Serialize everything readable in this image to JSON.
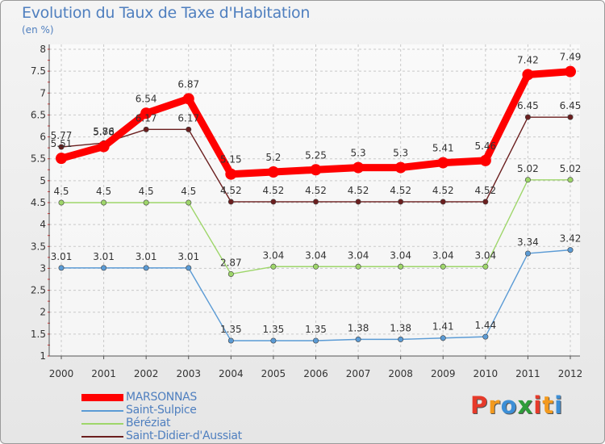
{
  "title": "Evolution du Taux de Taxe d'Habitation",
  "subtitle": "(en %)",
  "brand": {
    "text": "Proxiti",
    "letters": [
      "P",
      "r",
      "o",
      "x",
      "i",
      "t",
      "i"
    ],
    "colors": [
      "#e63a2a",
      "#f39a1e",
      "#3d8fd6",
      "#2e9d3a",
      "#e63a2a",
      "#f39a1e",
      "#3d8fd6"
    ]
  },
  "chart_data": {
    "type": "line",
    "x": [
      "2000",
      "2001",
      "2002",
      "2003",
      "2004",
      "2005",
      "2006",
      "2007",
      "2008",
      "2009",
      "2010",
      "2011",
      "2012"
    ],
    "ylim": [
      1,
      8
    ],
    "yticks": [
      "1",
      "1.5",
      "2",
      "2.5",
      "3",
      "3.5",
      "4",
      "4.5",
      "5",
      "5.5",
      "6",
      "6.5",
      "7",
      "7.5",
      "8"
    ],
    "grid": true,
    "legend_position": "bottom-left",
    "series": [
      {
        "name": "Saint-Didier-d'Aussiat",
        "color": "#6b1f1f",
        "values": [
          5.77,
          5.86,
          6.17,
          6.17,
          4.52,
          4.52,
          4.52,
          4.52,
          4.52,
          4.52,
          4.52,
          6.45,
          6.45
        ],
        "labels": [
          "5.77",
          "5.86",
          "6.17",
          "6.17",
          "4.52",
          "4.52",
          "4.52",
          "4.52",
          "4.52",
          "4.52",
          "4.52",
          "6.45",
          "6.45"
        ]
      },
      {
        "name": "Béréziat",
        "color": "#9ed66a",
        "values": [
          4.5,
          4.5,
          4.5,
          4.5,
          2.87,
          3.04,
          3.04,
          3.04,
          3.04,
          3.04,
          3.04,
          5.02,
          5.02
        ],
        "labels": [
          "4.5",
          "4.5",
          "4.5",
          "4.5",
          "2.87",
          "3.04",
          "3.04",
          "3.04",
          "3.04",
          "3.04",
          "3.04",
          "5.02",
          "5.02"
        ]
      },
      {
        "name": "Saint-Sulpice",
        "color": "#5b9bd5",
        "values": [
          3.01,
          3.01,
          3.01,
          3.01,
          1.35,
          1.35,
          1.35,
          1.38,
          1.38,
          1.41,
          1.44,
          3.34,
          3.42
        ],
        "labels": [
          "3.01",
          "3.01",
          "3.01",
          "3.01",
          "1.35",
          "1.35",
          "1.35",
          "1.38",
          "1.38",
          "1.41",
          "1.44",
          "3.34",
          "3.42"
        ]
      },
      {
        "name": "MARSONNAS",
        "color": "#ff0000",
        "values": [
          5.51,
          5.78,
          6.54,
          6.87,
          5.15,
          5.2,
          5.25,
          5.3,
          5.3,
          5.41,
          5.46,
          7.42,
          7.49
        ],
        "labels": [
          "5.51",
          "5.78",
          "6.54",
          "6.87",
          "5.15",
          "5.2",
          "5.25",
          "5.3",
          "5.3",
          "5.41",
          "5.46",
          "7.42",
          "7.49"
        ]
      }
    ],
    "legend": [
      {
        "name": "MARSONNAS",
        "color": "#ff0000",
        "bold": true
      },
      {
        "name": "Saint-Sulpice",
        "color": "#5b9bd5",
        "bold": false
      },
      {
        "name": "Béréziat",
        "color": "#9ed66a",
        "bold": false
      },
      {
        "name": "Saint-Didier-d'Aussiat",
        "color": "#6b1f1f",
        "bold": false
      }
    ]
  }
}
